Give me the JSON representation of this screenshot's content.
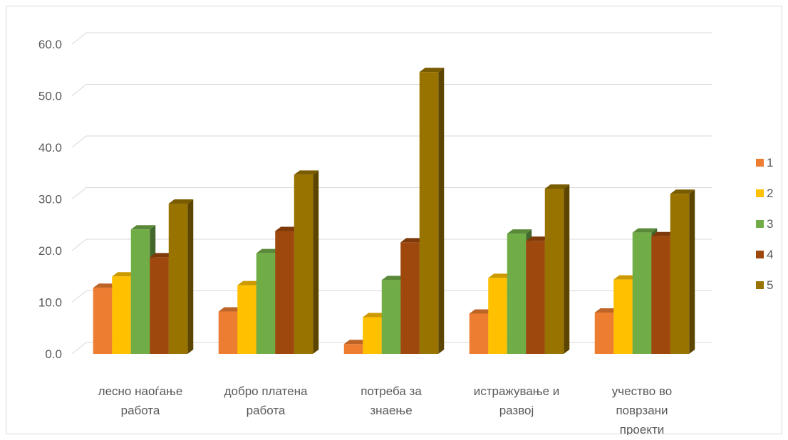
{
  "chart_data": {
    "type": "bar",
    "categories": [
      [
        "лесно наоѓање",
        "работа"
      ],
      [
        "добро платена",
        "работа"
      ],
      [
        "потреба за",
        "знаење"
      ],
      [
        "истражување и",
        "развој"
      ],
      [
        "учество во",
        "поврзани",
        "проекти"
      ]
    ],
    "series": [
      {
        "name": "1",
        "color": "#ED7D31",
        "values": [
          12.8,
          8.2,
          1.9,
          7.8,
          8.0
        ]
      },
      {
        "name": "2",
        "color": "#FFC000",
        "values": [
          15.0,
          13.3,
          7.1,
          14.7,
          14.4
        ]
      },
      {
        "name": "3",
        "color": "#70AD47",
        "values": [
          24.1,
          19.5,
          14.3,
          23.3,
          23.5
        ]
      },
      {
        "name": "4",
        "color": "#9E480E",
        "values": [
          18.7,
          23.8,
          21.6,
          21.9,
          22.8
        ]
      },
      {
        "name": "5",
        "color": "#997300",
        "values": [
          29.1,
          34.7,
          54.6,
          32.0,
          31.0
        ]
      }
    ],
    "ylim": [
      0,
      60
    ],
    "yticks": [
      "0.0",
      "10.0",
      "20.0",
      "30.0",
      "40.0",
      "50.0",
      "60.0"
    ],
    "grid": true,
    "legend_position": "right",
    "title": "",
    "xlabel": "",
    "ylabel": ""
  }
}
